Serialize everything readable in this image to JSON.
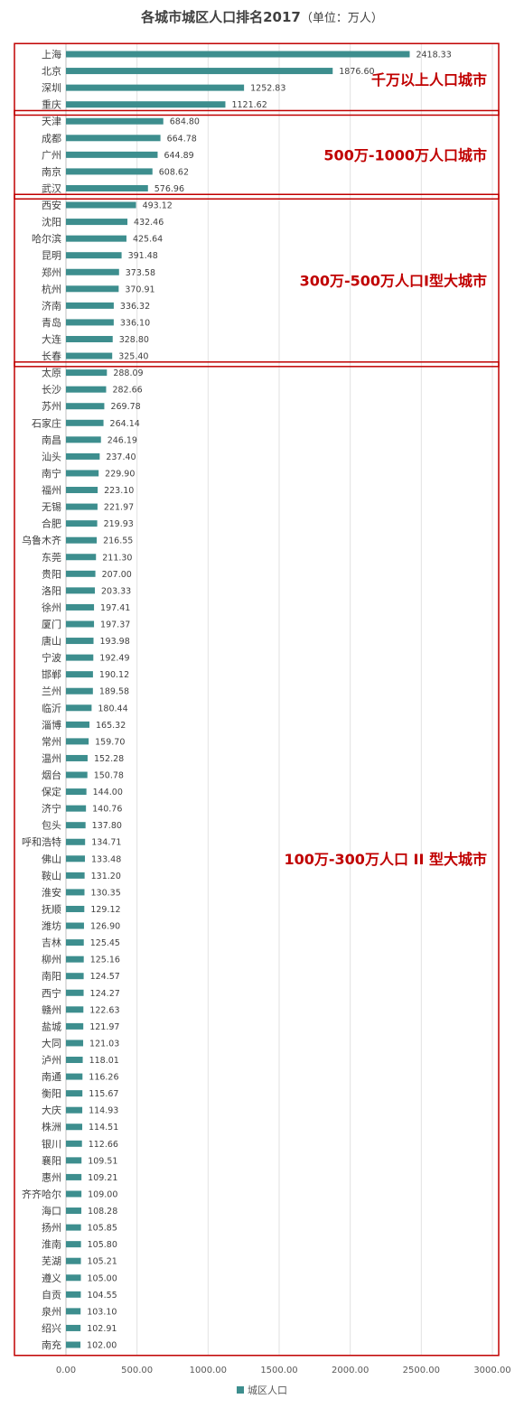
{
  "chart_data": {
    "type": "bar",
    "orientation": "horizontal",
    "title": "各城市城区人口排名2017",
    "subtitle": "（单位：万人）",
    "xlim": [
      0,
      3000
    ],
    "xticks": [
      "0.00",
      "500.00",
      "1000.00",
      "1500.00",
      "2000.00",
      "2500.00",
      "3000.00"
    ],
    "grid": true,
    "legend_position": "bottom",
    "series": [
      {
        "name": "城区人口",
        "color": "#3d8e8e"
      }
    ],
    "categories": [
      "上海",
      "北京",
      "深圳",
      "重庆",
      "天津",
      "成都",
      "广州",
      "南京",
      "武汉",
      "西安",
      "沈阳",
      "哈尔滨",
      "昆明",
      "郑州",
      "杭州",
      "济南",
      "青岛",
      "大连",
      "长春",
      "太原",
      "长沙",
      "苏州",
      "石家庄",
      "南昌",
      "汕头",
      "南宁",
      "福州",
      "无锡",
      "合肥",
      "乌鲁木齐",
      "东莞",
      "贵阳",
      "洛阳",
      "徐州",
      "厦门",
      "唐山",
      "宁波",
      "邯郸",
      "兰州",
      "临沂",
      "淄博",
      "常州",
      "温州",
      "烟台",
      "保定",
      "济宁",
      "包头",
      "呼和浩特",
      "佛山",
      "鞍山",
      "淮安",
      "抚顺",
      "潍坊",
      "吉林",
      "柳州",
      "南阳",
      "西宁",
      "赣州",
      "盐城",
      "大同",
      "泸州",
      "南通",
      "衡阳",
      "大庆",
      "株洲",
      "银川",
      "襄阳",
      "惠州",
      "齐齐哈尔",
      "海口",
      "扬州",
      "淮南",
      "芜湖",
      "遵义",
      "自贡",
      "泉州",
      "绍兴",
      "南充"
    ],
    "values": [
      2418.33,
      1876.6,
      1252.83,
      1121.62,
      684.8,
      664.78,
      644.89,
      608.62,
      576.96,
      493.12,
      432.46,
      425.64,
      391.48,
      373.58,
      370.91,
      336.32,
      336.1,
      328.8,
      325.4,
      288.09,
      282.66,
      269.78,
      264.14,
      246.19,
      237.4,
      229.9,
      223.1,
      221.97,
      219.93,
      216.55,
      211.3,
      207.0,
      203.33,
      197.41,
      197.37,
      193.98,
      192.49,
      190.12,
      189.58,
      180.44,
      165.32,
      159.7,
      152.28,
      150.78,
      144.0,
      140.76,
      137.8,
      134.71,
      133.48,
      131.2,
      130.35,
      129.12,
      126.9,
      125.45,
      125.16,
      124.57,
      124.27,
      122.63,
      121.97,
      121.03,
      118.01,
      116.26,
      115.67,
      114.93,
      114.51,
      112.66,
      109.51,
      109.21,
      109.0,
      108.28,
      105.85,
      105.8,
      105.21,
      105.0,
      104.55,
      103.1,
      102.91,
      102.0
    ],
    "value_labels": [
      "2418.33",
      "1876.60",
      "1252.83",
      "1121.62",
      "684.80",
      "664.78",
      "644.89",
      "608.62",
      "576.96",
      "493.12",
      "432.46",
      "425.64",
      "391.48",
      "373.58",
      "370.91",
      "336.32",
      "336.10",
      "328.80",
      "325.40",
      "288.09",
      "282.66",
      "269.78",
      "264.14",
      "246.19",
      "237.40",
      "229.90",
      "223.10",
      "221.97",
      "219.93",
      "216.55",
      "211.30",
      "207.00",
      "203.33",
      "197.41",
      "197.37",
      "193.98",
      "192.49",
      "190.12",
      "189.58",
      "180.44",
      "165.32",
      "159.70",
      "152.28",
      "150.78",
      "144.00",
      "140.76",
      "137.80",
      "134.71",
      "133.48",
      "131.20",
      "130.35",
      "129.12",
      "126.90",
      "125.45",
      "125.16",
      "124.57",
      "124.27",
      "122.63",
      "121.97",
      "121.03",
      "118.01",
      "116.26",
      "115.67",
      "114.93",
      "114.51",
      "112.66",
      "109.51",
      "109.21",
      "109.00",
      "108.28",
      "105.85",
      "105.80",
      "105.21",
      "105.00",
      "104.55",
      "103.10",
      "102.91",
      "102.00"
    ],
    "groups": [
      {
        "label": "千万以上人口城市",
        "start": 0,
        "end": 3
      },
      {
        "label": "500万-1000万人口城市",
        "start": 4,
        "end": 8
      },
      {
        "label": "300万-500万人口I型大城市",
        "start": 9,
        "end": 18
      },
      {
        "label": "100万-300万人口 II 型大城市",
        "start": 19,
        "end": 77
      }
    ],
    "group_box_color": "#c00000"
  }
}
